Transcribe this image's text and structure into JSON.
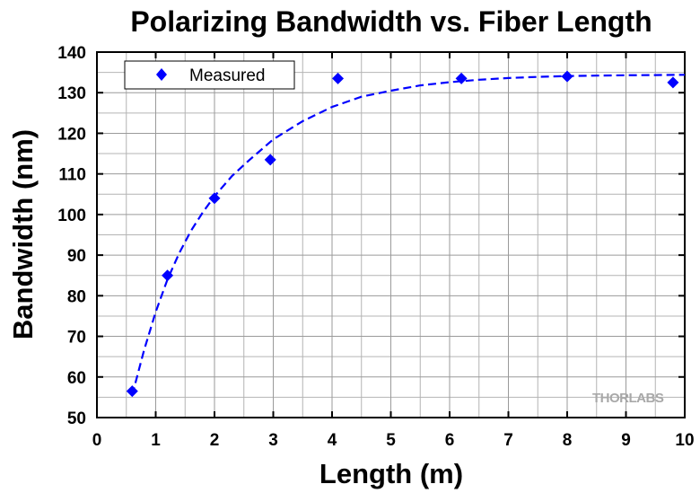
{
  "chart_data": {
    "type": "scatter",
    "title": "Polarizing Bandwidth vs. Fiber Length",
    "xlabel": "Length (m)",
    "ylabel": "Bandwidth (nm)",
    "xlim": [
      0,
      10
    ],
    "ylim": [
      50,
      140
    ],
    "xticks": [
      0,
      1,
      2,
      3,
      4,
      5,
      6,
      7,
      8,
      9,
      10
    ],
    "yticks": [
      50,
      60,
      70,
      80,
      90,
      100,
      110,
      120,
      130,
      140
    ],
    "grid": true,
    "legend_position": "top-left",
    "series": [
      {
        "name": "Measured",
        "marker": "diamond",
        "color": "#0000ff",
        "x": [
          0.6,
          1.2,
          2.0,
          2.95,
          4.1,
          6.2,
          8.0,
          9.8
        ],
        "y": [
          56.5,
          85,
          104,
          113.5,
          133.5,
          133.5,
          134,
          132.5
        ]
      },
      {
        "style": "dashed",
        "color": "#0000ff",
        "x": [
          0.6,
          0.8,
          1.0,
          1.2,
          1.4,
          1.6,
          1.8,
          2.0,
          2.3,
          2.6,
          3.0,
          3.5,
          4.0,
          4.5,
          5.0,
          5.5,
          6.0,
          6.5,
          7.0,
          7.5,
          8.0,
          8.5,
          9.0,
          9.5,
          10.0
        ],
        "y": [
          55.5,
          66.5,
          76.0,
          84.0,
          90.5,
          96.0,
          100.5,
          104.5,
          109.5,
          113.5,
          118.5,
          123.0,
          126.5,
          129.0,
          130.5,
          131.8,
          132.6,
          133.2,
          133.6,
          133.9,
          134.1,
          134.2,
          134.3,
          134.35,
          134.4
        ]
      }
    ],
    "logo": "THORLABS"
  }
}
